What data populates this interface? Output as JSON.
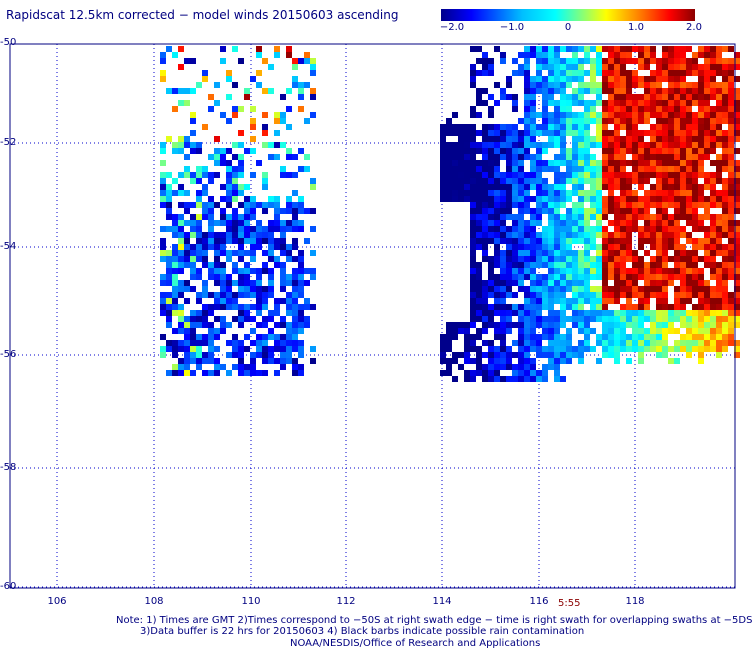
{
  "title": "Rapidscat 12.5km corrected − model winds 20150603 ascending",
  "colorbar": {
    "labels": [
      "−2.0",
      "−1.0",
      "0",
      "1.0",
      "2.0"
    ],
    "range": [
      -2.0,
      2.0
    ]
  },
  "axes": {
    "lat_labels": [
      "-50",
      "-52",
      "-54",
      "-56",
      "-58",
      "-60"
    ],
    "lon_labels": [
      "106",
      "108",
      "110",
      "112",
      "114",
      "116",
      "118"
    ],
    "lat_range": [
      -50,
      -60
    ],
    "lon_range": [
      105.3,
      119.9
    ]
  },
  "time_label": "5:55",
  "notes": [
    "Note: 1) Times are GMT 2)Times correspond to −50S at right swath edge − time is right swath for overlapping swaths at −5DS",
    "3)Data buffer is 22 hrs for 20150603 4) Black barbs indicate possible rain contamination",
    "NOAA/NESDIS/Office of Research and Applications"
  ],
  "colors": {
    "grid": "#0000cc",
    "text": "#000080",
    "scale": [
      "#00008b",
      "#0000ff",
      "#00bfff",
      "#00ffff",
      "#ffff00",
      "#ff8000",
      "#ff0000",
      "#8b0000"
    ]
  }
}
